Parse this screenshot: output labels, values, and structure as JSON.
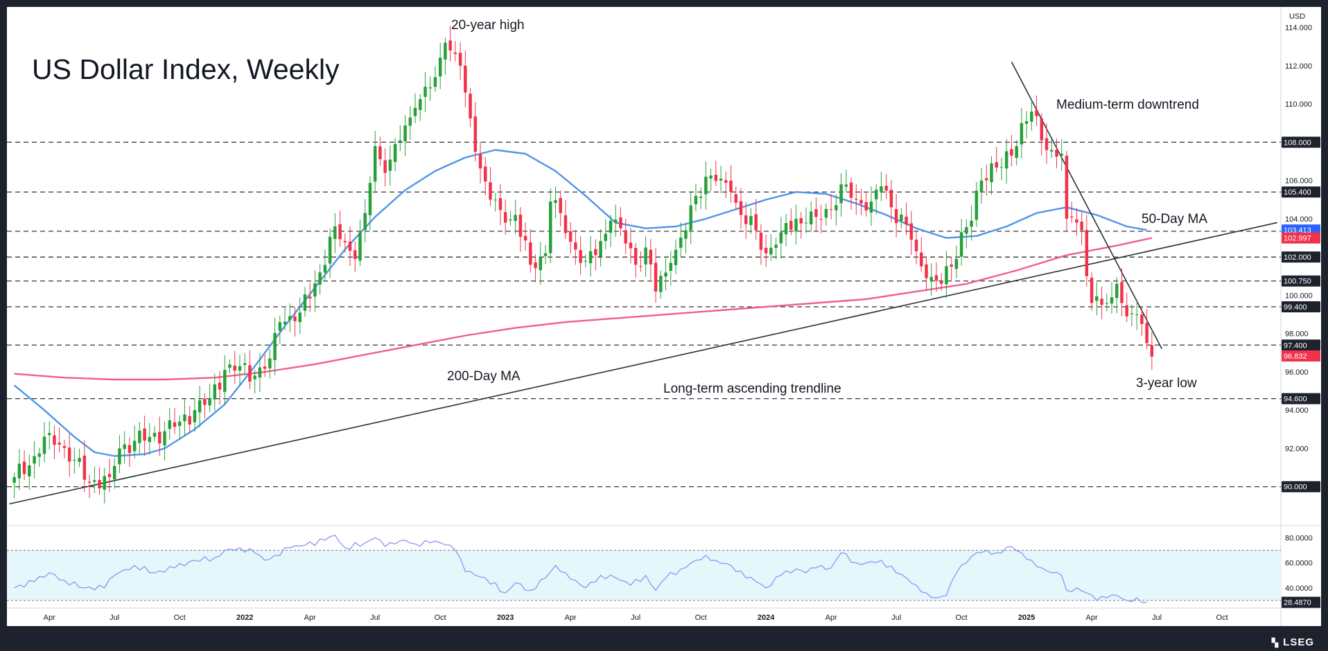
{
  "chart_data": {
    "type": "candlestick",
    "title": "US Dollar Index, Weekly",
    "currency": "USD",
    "colors": {
      "up": "#26a038",
      "down": "#f0324b",
      "ma50": "#4f95e8",
      "ma200": "#ef5d8e",
      "trend": "#2a2e39",
      "rsi": "#8f9cf2",
      "rsi_band": "#e6f7fb",
      "level_line": "#333333",
      "tag_dark": "#1e222d",
      "tag_red": "#f0324b",
      "tag_blue": "#2962ff"
    },
    "price_axis": {
      "range": [
        88.0,
        115.0
      ],
      "ticks": [
        "114.000",
        "112.000",
        "110.000",
        "108.000",
        "106.000",
        "104.000",
        "102.000",
        "100.000",
        "98.000",
        "96.000",
        "94.000",
        "92.000",
        "90.000"
      ],
      "tick_values": [
        114,
        112,
        110,
        108,
        106,
        104,
        102,
        100,
        98,
        96,
        94,
        92,
        90
      ]
    },
    "levels": [
      {
        "value": 108.0,
        "label": "108.000"
      },
      {
        "value": 105.4,
        "label": "105.400"
      },
      {
        "value": 103.35,
        "label": "103.350"
      },
      {
        "value": 102.0,
        "label": "102.000"
      },
      {
        "value": 100.75,
        "label": "100.750"
      },
      {
        "value": 99.4,
        "label": "99.400"
      },
      {
        "value": 97.4,
        "label": "97.400"
      },
      {
        "value": 94.6,
        "label": "94.600"
      },
      {
        "value": 90.0,
        "label": "90.000"
      }
    ],
    "price_tags": [
      {
        "value": 103.413,
        "label": "103.413",
        "style": "blue"
      },
      {
        "value": 102.997,
        "label": "102.997",
        "style": "red"
      },
      {
        "value": 96.832,
        "label": "96.832",
        "style": "red"
      }
    ],
    "x_axis": {
      "labels": [
        {
          "label": "Apr",
          "week": 7,
          "bold": false
        },
        {
          "label": "Jul",
          "week": 20,
          "bold": false
        },
        {
          "label": "Oct",
          "week": 33,
          "bold": false
        },
        {
          "label": "2022",
          "week": 46,
          "bold": true
        },
        {
          "label": "Apr",
          "week": 59,
          "bold": false
        },
        {
          "label": "Jul",
          "week": 72,
          "bold": false
        },
        {
          "label": "Oct",
          "week": 85,
          "bold": false
        },
        {
          "label": "2023",
          "week": 98,
          "bold": true
        },
        {
          "label": "Apr",
          "week": 111,
          "bold": false
        },
        {
          "label": "Jul",
          "week": 124,
          "bold": false
        },
        {
          "label": "Oct",
          "week": 137,
          "bold": false
        },
        {
          "label": "2024",
          "week": 150,
          "bold": true
        },
        {
          "label": "Apr",
          "week": 163,
          "bold": false
        },
        {
          "label": "Jul",
          "week": 176,
          "bold": false
        },
        {
          "label": "Oct",
          "week": 189,
          "bold": false
        },
        {
          "label": "2025",
          "week": 202,
          "bold": true
        },
        {
          "label": "Apr",
          "week": 215,
          "bold": false
        },
        {
          "label": "Jul",
          "week": 228,
          "bold": false
        },
        {
          "label": "Oct",
          "week": 241,
          "bold": false
        }
      ],
      "total_weeks": 252
    },
    "anchors": [
      [
        0,
        90.5
      ],
      [
        4,
        91.6
      ],
      [
        7,
        92.8
      ],
      [
        9,
        92.2
      ],
      [
        12,
        91.4
      ],
      [
        15,
        90.2
      ],
      [
        19,
        90.5
      ],
      [
        21,
        92.0
      ],
      [
        24,
        92.4
      ],
      [
        27,
        92.6
      ],
      [
        30,
        92.9
      ],
      [
        33,
        93.4
      ],
      [
        36,
        94.0
      ],
      [
        39,
        94.6
      ],
      [
        42,
        96.1
      ],
      [
        45,
        96.3
      ],
      [
        48,
        95.8
      ],
      [
        51,
        96.7
      ],
      [
        53,
        98.6
      ],
      [
        57,
        99.1
      ],
      [
        61,
        101.2
      ],
      [
        64,
        103.6
      ],
      [
        68,
        101.9
      ],
      [
        70,
        104.3
      ],
      [
        72,
        107.8
      ],
      [
        74,
        106.4
      ],
      [
        77,
        108.1
      ],
      [
        80,
        109.8
      ],
      [
        84,
        111.4
      ],
      [
        86,
        113.2
      ],
      [
        89,
        112.0
      ],
      [
        90,
        110.6
      ],
      [
        92,
        107.5
      ],
      [
        95,
        105.0
      ],
      [
        98,
        103.8
      ],
      [
        100,
        104.2
      ],
      [
        103,
        101.6
      ],
      [
        106,
        102.2
      ],
      [
        107,
        104.9
      ],
      [
        109,
        104.3
      ],
      [
        111,
        102.8
      ],
      [
        114,
        101.8
      ],
      [
        116,
        102.1
      ],
      [
        119,
        103.9
      ],
      [
        121,
        103.5
      ],
      [
        124,
        101.6
      ],
      [
        126,
        102.5
      ],
      [
        128,
        100.2
      ],
      [
        131,
        101.7
      ],
      [
        134,
        103.4
      ],
      [
        136,
        105.2
      ],
      [
        138,
        106.2
      ],
      [
        141,
        106.1
      ],
      [
        143,
        105.4
      ],
      [
        145,
        104.2
      ],
      [
        148,
        103.4
      ],
      [
        150,
        102.2
      ],
      [
        153,
        103.3
      ],
      [
        156,
        104.0
      ],
      [
        158,
        103.8
      ],
      [
        160,
        104.1
      ],
      [
        163,
        104.5
      ],
      [
        165,
        105.8
      ],
      [
        168,
        105.0
      ],
      [
        171,
        104.9
      ],
      [
        173,
        105.7
      ],
      [
        175,
        104.6
      ],
      [
        178,
        103.7
      ],
      [
        180,
        102.3
      ],
      [
        182,
        100.9
      ],
      [
        185,
        100.6
      ],
      [
        187,
        101.5
      ],
      [
        189,
        103.3
      ],
      [
        191,
        103.9
      ],
      [
        193,
        106.0
      ],
      [
        195,
        106.9
      ],
      [
        197,
        106.7
      ],
      [
        199,
        107.3
      ],
      [
        201,
        109.0
      ],
      [
        203,
        109.6
      ],
      [
        205,
        108.1
      ],
      [
        207,
        107.6
      ],
      [
        209,
        107.4
      ],
      [
        210,
        104.0
      ],
      [
        212,
        103.8
      ],
      [
        213,
        103.4
      ],
      [
        214,
        101.0
      ],
      [
        215,
        99.6
      ],
      [
        217,
        99.5
      ],
      [
        219,
        99.9
      ],
      [
        220,
        100.6
      ],
      [
        221,
        99.6
      ],
      [
        222,
        98.9
      ],
      [
        224,
        99.0
      ],
      [
        225,
        98.5
      ],
      [
        226,
        97.5
      ],
      [
        227,
        96.8
      ]
    ],
    "ma50": [
      [
        0,
        95.3
      ],
      [
        6,
        94.0
      ],
      [
        12,
        92.6
      ],
      [
        16,
        91.8
      ],
      [
        20,
        91.6
      ],
      [
        26,
        91.7
      ],
      [
        30,
        92.0
      ],
      [
        36,
        93.0
      ],
      [
        42,
        94.3
      ],
      [
        48,
        96.3
      ],
      [
        54,
        98.4
      ],
      [
        60,
        100.4
      ],
      [
        66,
        102.4
      ],
      [
        72,
        104.1
      ],
      [
        78,
        105.5
      ],
      [
        84,
        106.5
      ],
      [
        90,
        107.2
      ],
      [
        96,
        107.6
      ],
      [
        102,
        107.4
      ],
      [
        108,
        106.5
      ],
      [
        114,
        105.2
      ],
      [
        120,
        103.8
      ],
      [
        126,
        103.5
      ],
      [
        132,
        103.6
      ],
      [
        138,
        104.0
      ],
      [
        144,
        104.5
      ],
      [
        150,
        105.0
      ],
      [
        156,
        105.4
      ],
      [
        162,
        105.3
      ],
      [
        168,
        104.8
      ],
      [
        174,
        104.2
      ],
      [
        180,
        103.5
      ],
      [
        186,
        103.0
      ],
      [
        192,
        103.1
      ],
      [
        198,
        103.6
      ],
      [
        204,
        104.3
      ],
      [
        210,
        104.6
      ],
      [
        216,
        104.2
      ],
      [
        222,
        103.6
      ],
      [
        226,
        103.413
      ]
    ],
    "ma200": [
      [
        0,
        95.9
      ],
      [
        10,
        95.7
      ],
      [
        20,
        95.6
      ],
      [
        30,
        95.6
      ],
      [
        40,
        95.7
      ],
      [
        50,
        96.0
      ],
      [
        60,
        96.4
      ],
      [
        70,
        96.9
      ],
      [
        80,
        97.4
      ],
      [
        90,
        97.9
      ],
      [
        100,
        98.3
      ],
      [
        110,
        98.6
      ],
      [
        120,
        98.8
      ],
      [
        130,
        99.0
      ],
      [
        140,
        99.2
      ],
      [
        150,
        99.4
      ],
      [
        160,
        99.6
      ],
      [
        170,
        99.8
      ],
      [
        180,
        100.2
      ],
      [
        190,
        100.6
      ],
      [
        200,
        101.3
      ],
      [
        210,
        102.1
      ],
      [
        220,
        102.6
      ],
      [
        227,
        102.997
      ]
    ],
    "ascending_trendline": {
      "from": [
        -1,
        89.1
      ],
      "to": [
        252,
        103.8
      ]
    },
    "downtrend_line": {
      "from": [
        199,
        112.2
      ],
      "to": [
        229,
        97.2
      ]
    },
    "annotations": {
      "high": "20-year high",
      "downtrend": "Medium-term downtrend",
      "ma50": "50-Day MA",
      "ma200": "200-Day MA",
      "ascending": "Long-term ascending trendline",
      "low": "3-year low"
    },
    "rsi": {
      "range": [
        25,
        88
      ],
      "ticks": [
        "80.0000",
        "60.0000",
        "40.0000"
      ],
      "tick_values": [
        80,
        60,
        40
      ],
      "band": [
        30,
        70
      ],
      "current": 28.487,
      "current_label": "28.4870",
      "values": [
        [
          0,
          40
        ],
        [
          4,
          45
        ],
        [
          7,
          52
        ],
        [
          10,
          46
        ],
        [
          14,
          40
        ],
        [
          18,
          40
        ],
        [
          20,
          50
        ],
        [
          24,
          58
        ],
        [
          28,
          52
        ],
        [
          32,
          56
        ],
        [
          36,
          62
        ],
        [
          40,
          64
        ],
        [
          42,
          70
        ],
        [
          45,
          72
        ],
        [
          48,
          68
        ],
        [
          50,
          62
        ],
        [
          52,
          66
        ],
        [
          55,
          72
        ],
        [
          58,
          74
        ],
        [
          62,
          78
        ],
        [
          64,
          82
        ],
        [
          66,
          72
        ],
        [
          70,
          76
        ],
        [
          72,
          80
        ],
        [
          74,
          73
        ],
        [
          76,
          75
        ],
        [
          78,
          78
        ],
        [
          80,
          75
        ],
        [
          83,
          76
        ],
        [
          85,
          76
        ],
        [
          87,
          74
        ],
        [
          88,
          70
        ],
        [
          90,
          53
        ],
        [
          94,
          48
        ],
        [
          98,
          36
        ],
        [
          100,
          44
        ],
        [
          103,
          38
        ],
        [
          106,
          48
        ],
        [
          108,
          58
        ],
        [
          110,
          52
        ],
        [
          112,
          46
        ],
        [
          114,
          40
        ],
        [
          117,
          50
        ],
        [
          120,
          48
        ],
        [
          123,
          42
        ],
        [
          126,
          50
        ],
        [
          128,
          38
        ],
        [
          130,
          48
        ],
        [
          133,
          55
        ],
        [
          136,
          62
        ],
        [
          138,
          66
        ],
        [
          140,
          62
        ],
        [
          143,
          58
        ],
        [
          146,
          48
        ],
        [
          148,
          45
        ],
        [
          150,
          40
        ],
        [
          153,
          50
        ],
        [
          156,
          55
        ],
        [
          158,
          52
        ],
        [
          160,
          56
        ],
        [
          163,
          56
        ],
        [
          165,
          68
        ],
        [
          168,
          60
        ],
        [
          170,
          60
        ],
        [
          173,
          62
        ],
        [
          176,
          52
        ],
        [
          178,
          48
        ],
        [
          180,
          42
        ],
        [
          182,
          36
        ],
        [
          184,
          32
        ],
        [
          186,
          34
        ],
        [
          188,
          52
        ],
        [
          190,
          60
        ],
        [
          192,
          68
        ],
        [
          194,
          70
        ],
        [
          196,
          68
        ],
        [
          199,
          73
        ],
        [
          201,
          68
        ],
        [
          203,
          62
        ],
        [
          205,
          56
        ],
        [
          207,
          52
        ],
        [
          209,
          50
        ],
        [
          210,
          38
        ],
        [
          212,
          40
        ],
        [
          214,
          36
        ],
        [
          216,
          30
        ],
        [
          218,
          32
        ],
        [
          220,
          34
        ],
        [
          222,
          30
        ],
        [
          224,
          32
        ],
        [
          226,
          28.5
        ]
      ]
    }
  },
  "branding": {
    "logo": "LSEG"
  }
}
